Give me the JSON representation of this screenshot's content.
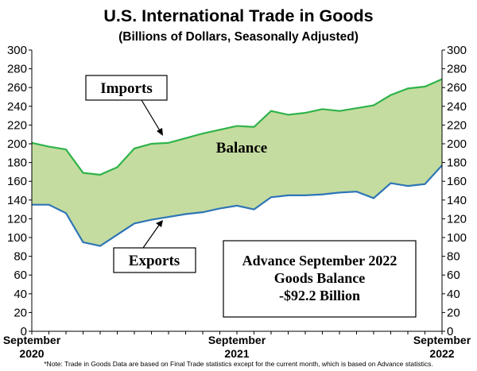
{
  "title": "U.S. International Trade in Goods",
  "subtitle": "(Billions of Dollars, Seasonally Adjusted)",
  "note": "*Note: Trade in Goods Data are based on Final Trade statistics except for the current month, which is based on Advance statistics.",
  "colors": {
    "imports": "#2fb34a",
    "exports": "#2e75b6",
    "balance_fill": "#c5dca0",
    "axis": "#000000",
    "grid": "#bfbfbf"
  },
  "chart_data": {
    "type": "area",
    "title": "U.S. International Trade in Goods",
    "subtitle": "(Billions of Dollars, Seasonally Adjusted)",
    "x": [
      "2020-09",
      "2020-10",
      "2020-11",
      "2020-12",
      "2021-01",
      "2021-02",
      "2021-03",
      "2021-04",
      "2021-05",
      "2021-06",
      "2021-07",
      "2021-08",
      "2021-09",
      "2021-10",
      "2021-11",
      "2021-12",
      "2022-01",
      "2022-02",
      "2022-03",
      "2022-04",
      "2022-05",
      "2022-06",
      "2022-07",
      "2022-08",
      "2022-09"
    ],
    "x_tick_labels": [
      {
        "x": "2020-09",
        "month": "September",
        "year": "2020"
      },
      {
        "x": "2021-09",
        "month": "September",
        "year": "2021"
      },
      {
        "x": "2022-09",
        "month": "September",
        "year": "2022"
      }
    ],
    "ylim": [
      0,
      300
    ],
    "yticks": [
      0,
      20,
      40,
      60,
      80,
      100,
      120,
      140,
      160,
      180,
      200,
      220,
      240,
      260,
      280,
      300
    ],
    "grid": false,
    "series": [
      {
        "name": "Imports",
        "values": [
          201,
          197,
          194,
          169,
          167,
          175,
          195,
          200,
          201,
          206,
          211,
          215,
          219,
          218,
          235,
          231,
          233,
          237,
          235,
          238,
          241,
          252,
          259,
          261,
          269
        ]
      },
      {
        "name": "Exports",
        "values": [
          135,
          135,
          126,
          95,
          91,
          103,
          115,
          119,
          122,
          125,
          127,
          131,
          134,
          130,
          143,
          145,
          145,
          146,
          148,
          149,
          142,
          158,
          155,
          157,
          177
        ]
      }
    ],
    "annotations": [
      {
        "text": "Imports",
        "boxed": true
      },
      {
        "text": "Exports",
        "boxed": true
      },
      {
        "text": "Balance",
        "boxed": false
      },
      {
        "lines": [
          "Advance September 2022",
          "Goods Balance",
          "-$92.2 Billion"
        ],
        "boxed": true
      }
    ]
  }
}
